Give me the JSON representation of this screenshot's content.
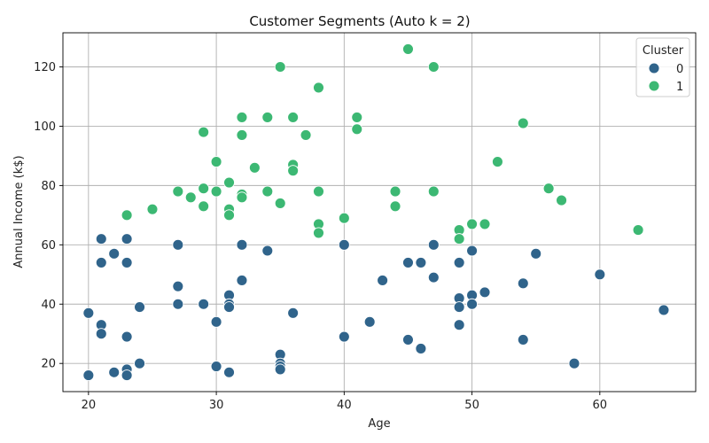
{
  "chart_data": {
    "type": "scatter",
    "title": "Customer Segments (Auto k = 2)",
    "xlabel": "Age",
    "ylabel": "Annual Income (k$)",
    "xlim": [
      18,
      67.5
    ],
    "ylim": [
      10.5,
      131.5
    ],
    "xticks": [
      20,
      30,
      40,
      50,
      60
    ],
    "yticks": [
      20,
      40,
      60,
      80,
      100,
      120
    ],
    "grid": true,
    "legend": {
      "title": "Cluster",
      "position": "top-right"
    },
    "series": [
      {
        "name": "0",
        "color": "#30648b",
        "points": [
          [
            20,
            37
          ],
          [
            20,
            16
          ],
          [
            21,
            62
          ],
          [
            21,
            54
          ],
          [
            21,
            33
          ],
          [
            21,
            30
          ],
          [
            22,
            57
          ],
          [
            22,
            17
          ],
          [
            23,
            62
          ],
          [
            23,
            54
          ],
          [
            23,
            29
          ],
          [
            23,
            18
          ],
          [
            23,
            16
          ],
          [
            24,
            39
          ],
          [
            24,
            20
          ],
          [
            27,
            60
          ],
          [
            27,
            46
          ],
          [
            27,
            40
          ],
          [
            29,
            40
          ],
          [
            30,
            34
          ],
          [
            30,
            19
          ],
          [
            31,
            43
          ],
          [
            31,
            40
          ],
          [
            31,
            39
          ],
          [
            31,
            17
          ],
          [
            32,
            60
          ],
          [
            32,
            48
          ],
          [
            34,
            58
          ],
          [
            35,
            23
          ],
          [
            35,
            20
          ],
          [
            35,
            19
          ],
          [
            35,
            18
          ],
          [
            36,
            37
          ],
          [
            40,
            60
          ],
          [
            40,
            29
          ],
          [
            42,
            34
          ],
          [
            43,
            48
          ],
          [
            45,
            54
          ],
          [
            45,
            28
          ],
          [
            46,
            54
          ],
          [
            46,
            25
          ],
          [
            47,
            60
          ],
          [
            47,
            49
          ],
          [
            49,
            54
          ],
          [
            49,
            42
          ],
          [
            49,
            39
          ],
          [
            49,
            33
          ],
          [
            50,
            58
          ],
          [
            50,
            43
          ],
          [
            50,
            40
          ],
          [
            51,
            44
          ],
          [
            54,
            47
          ],
          [
            54,
            28
          ],
          [
            55,
            57
          ],
          [
            58,
            20
          ],
          [
            60,
            50
          ],
          [
            65,
            38
          ]
        ]
      },
      {
        "name": "1",
        "color": "#3cb873",
        "points": [
          [
            23,
            70
          ],
          [
            25,
            72
          ],
          [
            27,
            78
          ],
          [
            28,
            76
          ],
          [
            29,
            98
          ],
          [
            29,
            79
          ],
          [
            29,
            73
          ],
          [
            30,
            88
          ],
          [
            30,
            78
          ],
          [
            31,
            81
          ],
          [
            31,
            72
          ],
          [
            31,
            70
          ],
          [
            32,
            103
          ],
          [
            32,
            97
          ],
          [
            32,
            77
          ],
          [
            32,
            76
          ],
          [
            33,
            86
          ],
          [
            34,
            103
          ],
          [
            34,
            78
          ],
          [
            35,
            120
          ],
          [
            35,
            74
          ],
          [
            36,
            103
          ],
          [
            36,
            87
          ],
          [
            36,
            85
          ],
          [
            37,
            97
          ],
          [
            38,
            113
          ],
          [
            38,
            78
          ],
          [
            38,
            67
          ],
          [
            38,
            64
          ],
          [
            40,
            69
          ],
          [
            41,
            103
          ],
          [
            41,
            99
          ],
          [
            44,
            78
          ],
          [
            44,
            73
          ],
          [
            45,
            126
          ],
          [
            47,
            120
          ],
          [
            47,
            78
          ],
          [
            49,
            65
          ],
          [
            49,
            62
          ],
          [
            50,
            67
          ],
          [
            51,
            67
          ],
          [
            52,
            88
          ],
          [
            54,
            101
          ],
          [
            56,
            79
          ],
          [
            57,
            75
          ],
          [
            63,
            65
          ]
        ]
      }
    ]
  }
}
